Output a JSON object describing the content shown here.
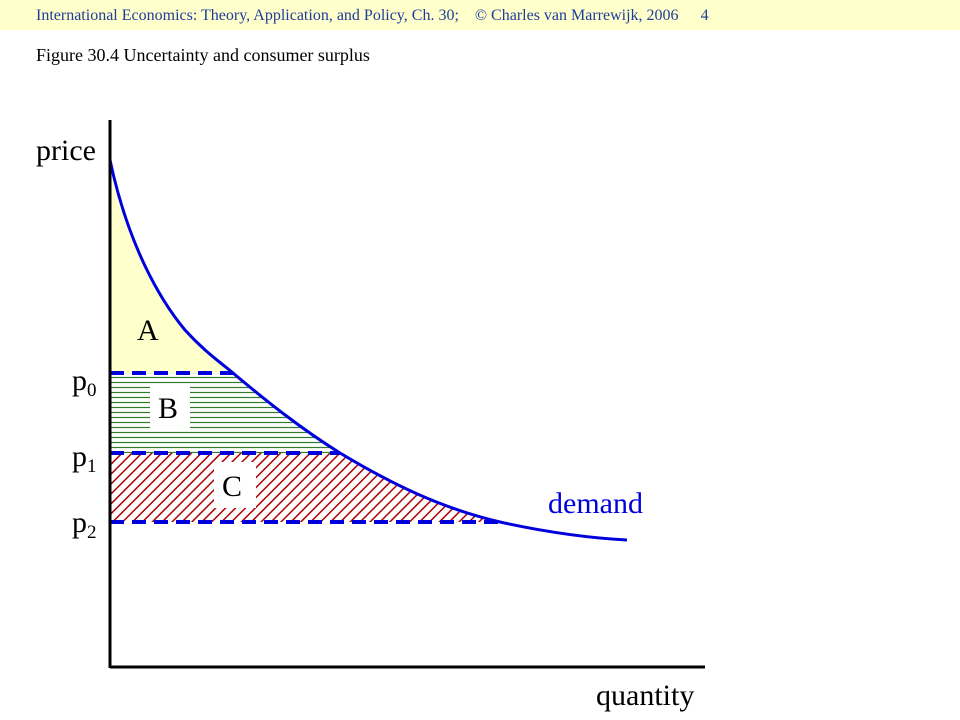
{
  "header": {
    "book": "International Economics: Theory, Application, and Policy, Ch. 30;",
    "copyright": "© Charles van Marrewijk, 2006",
    "page_number": "4",
    "background_color": "#ffffcc",
    "text_color": "#1f3c9a"
  },
  "figure": {
    "title": "Figure 30.4 Uncertainty and consumer surplus"
  },
  "diagram": {
    "y_axis_label": "price",
    "x_axis_label": "quantity",
    "curve_label": "demand",
    "price_levels": [
      {
        "label": "p",
        "subscript": "0"
      },
      {
        "label": "p",
        "subscript": "1"
      },
      {
        "label": "p",
        "subscript": "2"
      }
    ],
    "regions": [
      {
        "label": "A",
        "fill": "#ffffcc"
      },
      {
        "label": "B",
        "fill": "hatched-green"
      },
      {
        "label": "C",
        "fill": "hatched-red"
      }
    ],
    "colors": {
      "curve": "#0000dd",
      "dashed_lines": "#0000dd",
      "hatch_green": "#2e7d2e",
      "hatch_red": "#b00000",
      "axes": "#000000"
    }
  }
}
